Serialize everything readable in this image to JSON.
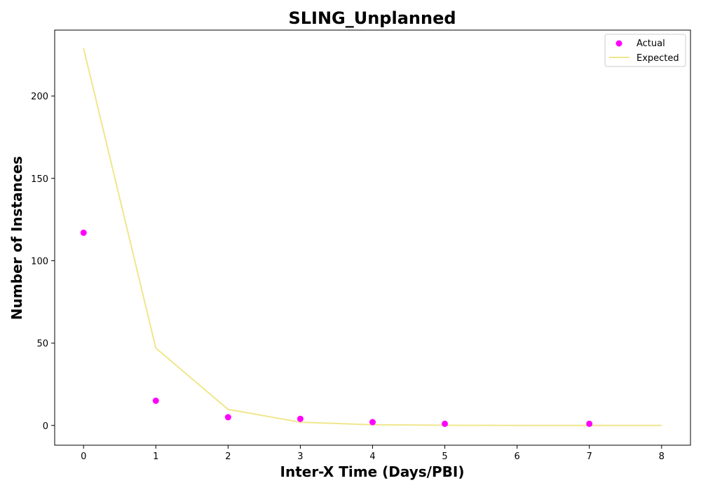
{
  "chart_data": {
    "type": "scatter",
    "title": "SLING_Unplanned",
    "xlabel": "Inter-X Time (Days/PBI)",
    "ylabel": "Number of Instances",
    "xlim": [
      -0.4,
      8.4
    ],
    "ylim": [
      -12,
      240
    ],
    "xticks": [
      0,
      1,
      2,
      3,
      4,
      5,
      6,
      7,
      8
    ],
    "yticks": [
      0,
      50,
      100,
      150,
      200
    ],
    "grid": false,
    "legend_position": "top-right",
    "series": [
      {
        "name": "Actual",
        "kind": "scatter",
        "color": "#ff00ff",
        "x": [
          0,
          1,
          2,
          3,
          4,
          5,
          7
        ],
        "y": [
          117,
          15,
          5,
          4,
          2,
          1,
          1
        ]
      },
      {
        "name": "Expected",
        "kind": "line",
        "color": "#f0e68c",
        "x": [
          0,
          1,
          2,
          3,
          4,
          5,
          6,
          7,
          8
        ],
        "y": [
          229,
          47,
          9.7,
          2,
          0.4,
          0.1,
          0.02,
          0,
          0
        ]
      }
    ]
  }
}
